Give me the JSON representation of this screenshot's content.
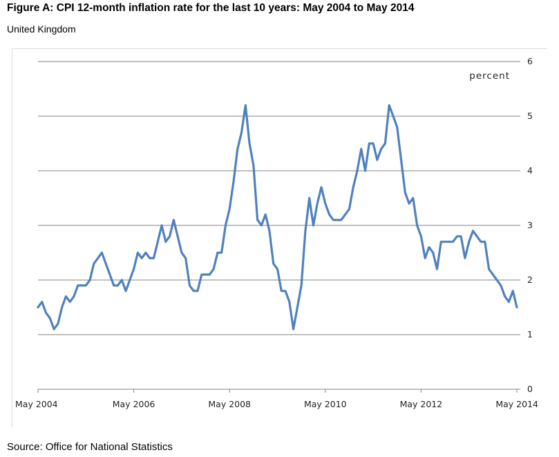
{
  "title": "Figure A: CPI 12-month inflation rate for the last 10 years: May 2004 to May 2014",
  "subtitle": "United Kingdom",
  "source": "Source: Office for National Statistics",
  "colors": {
    "line": "#4f81bd",
    "grid": "#808080",
    "axis": "#808080"
  },
  "chart_data": {
    "type": "line",
    "title": "Figure A: CPI 12-month inflation rate for the last 10 years: May 2004 to May 2014",
    "subtitle": "United Kingdom",
    "ylabel": "percent",
    "ylim": [
      0,
      6
    ],
    "yticks": [
      "0",
      "1",
      "2",
      "3",
      "4",
      "5",
      "6"
    ],
    "xticks": [
      "May 2004",
      "May 2006",
      "May 2008",
      "May 2010",
      "May 2012",
      "May 2014"
    ],
    "y_axis_side": "right",
    "grid": true,
    "series": [
      {
        "values": [
          1.5,
          1.6,
          1.4,
          1.3,
          1.1,
          1.2,
          1.5,
          1.7,
          1.6,
          1.7,
          1.9,
          1.9,
          1.9,
          2.0,
          2.3,
          2.4,
          2.5,
          2.3,
          2.1,
          1.9,
          1.9,
          2.0,
          1.8,
          2.0,
          2.2,
          2.5,
          2.4,
          2.5,
          2.4,
          2.4,
          2.7,
          3.0,
          2.7,
          2.8,
          3.1,
          2.8,
          2.5,
          2.4,
          1.9,
          1.8,
          1.8,
          2.1,
          2.1,
          2.1,
          2.2,
          2.5,
          2.5,
          3.0,
          3.3,
          3.8,
          4.4,
          4.7,
          5.2,
          4.5,
          4.1,
          3.1,
          3.0,
          3.2,
          2.9,
          2.3,
          2.2,
          1.8,
          1.8,
          1.6,
          1.1,
          1.5,
          1.9,
          2.9,
          3.5,
          3.0,
          3.4,
          3.7,
          3.4,
          3.2,
          3.1,
          3.1,
          3.1,
          3.2,
          3.3,
          3.7,
          4.0,
          4.4,
          4.0,
          4.5,
          4.5,
          4.2,
          4.4,
          4.5,
          5.2,
          5.0,
          4.8,
          4.2,
          3.6,
          3.4,
          3.5,
          3.0,
          2.8,
          2.4,
          2.6,
          2.5,
          2.2,
          2.7,
          2.7,
          2.7,
          2.7,
          2.8,
          2.8,
          2.4,
          2.7,
          2.9,
          2.8,
          2.7,
          2.7,
          2.2,
          2.1,
          2.0,
          1.9,
          1.7,
          1.6,
          1.8,
          1.5
        ]
      }
    ]
  }
}
